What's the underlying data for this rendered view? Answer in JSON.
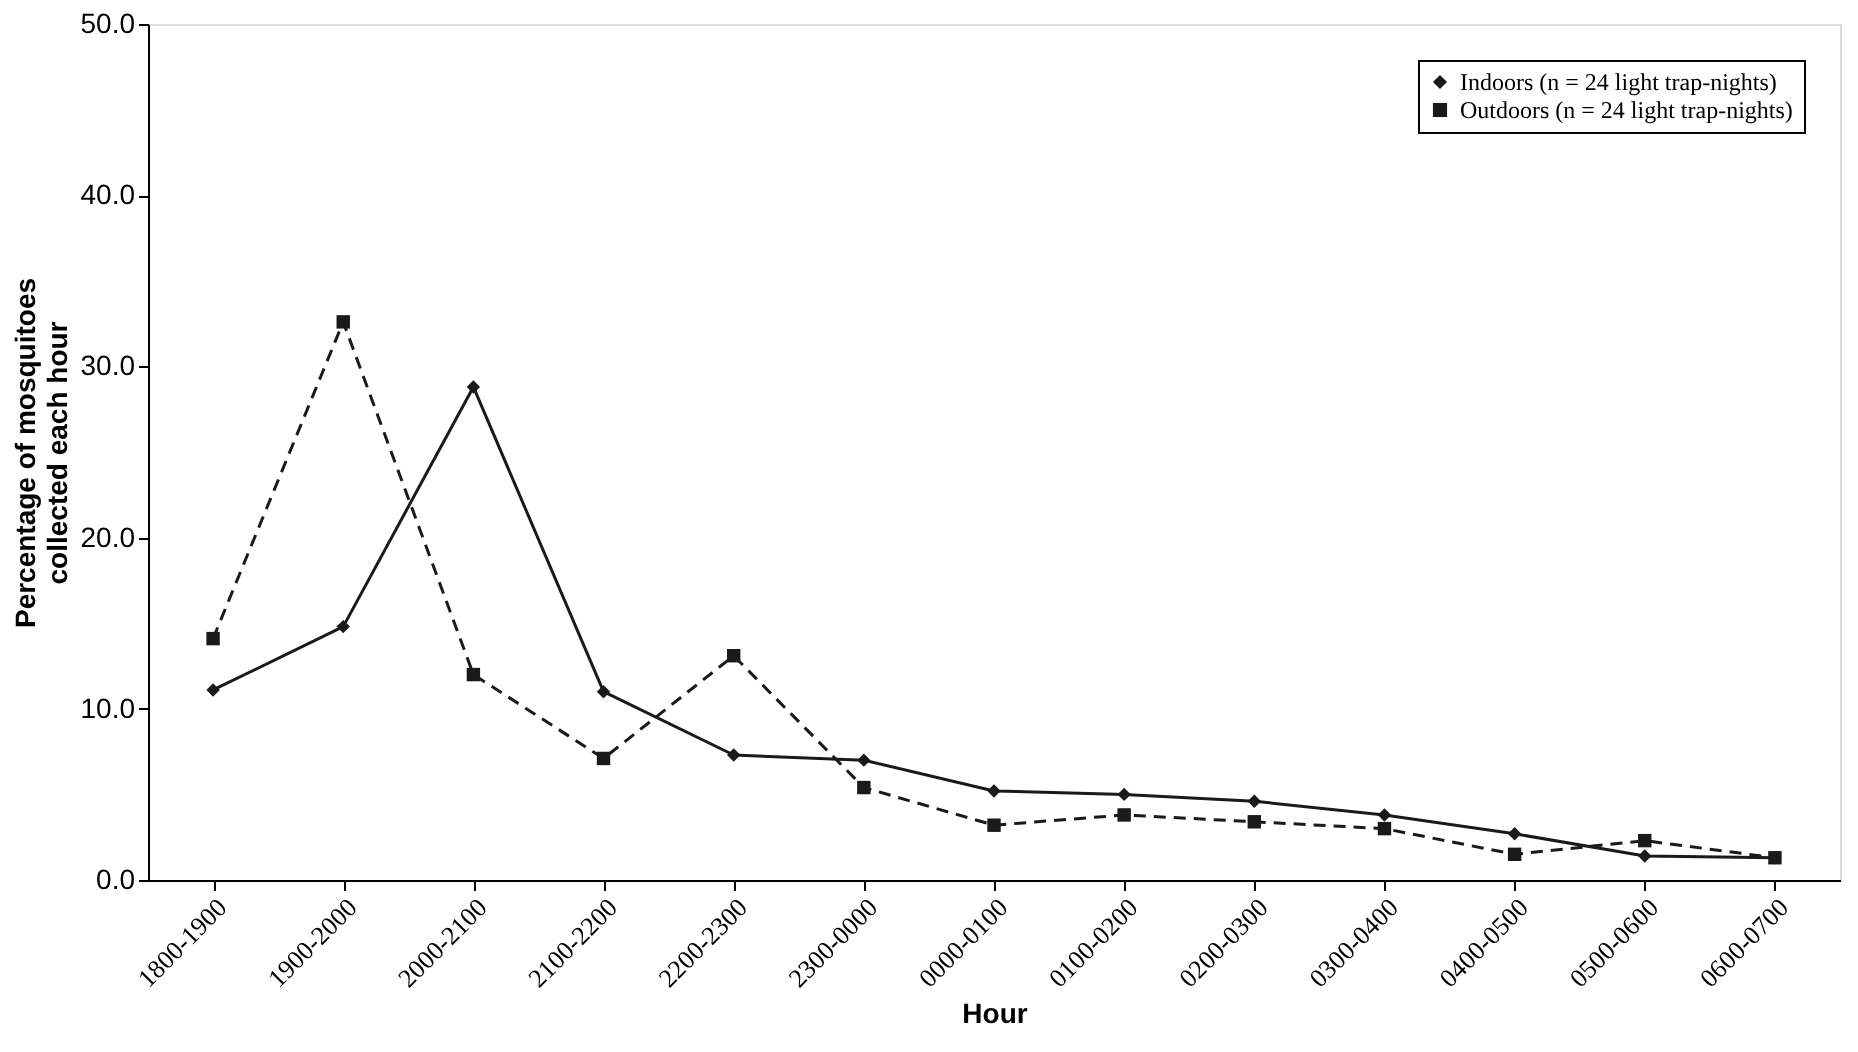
{
  "chart_data": {
    "type": "line",
    "xlabel": "Hour",
    "ylabel": "Percentage of mosquitoes collected each hour",
    "categories": [
      "1800-1900",
      "1900-2000",
      "2000-2100",
      "2100-2200",
      "2200-2300",
      "2300-0000",
      "0000-0100",
      "0100-0200",
      "0200-0300",
      "0300-0400",
      "0400-0500",
      "0500-0600",
      "0600-0700"
    ],
    "series": [
      {
        "name": "Indoors (n = 24 light trap-nights)",
        "color": "#1a1a1a",
        "marker": "diamond",
        "line_style": "solid",
        "values": [
          11.1,
          14.8,
          28.8,
          11.0,
          7.3,
          7.0,
          5.2,
          5.0,
          4.6,
          3.8,
          2.7,
          1.4,
          1.3
        ]
      },
      {
        "name": "Outdoors (n = 24 light trap-nights)",
        "color": "#1a1a1a",
        "marker": "square",
        "line_style": "dashed",
        "values": [
          14.1,
          32.6,
          12.0,
          7.1,
          13.1,
          5.4,
          3.2,
          3.8,
          3.4,
          3.0,
          1.5,
          2.3,
          1.3
        ]
      }
    ],
    "ylim": [
      0,
      50
    ],
    "yticks": [
      {
        "value": 0,
        "label": "0.0"
      },
      {
        "value": 10,
        "label": "10.0"
      },
      {
        "value": 20,
        "label": "20.0"
      },
      {
        "value": 30,
        "label": "30.0"
      },
      {
        "value": 40,
        "label": "40.0"
      },
      {
        "value": 50,
        "label": "50.0"
      }
    ],
    "grid": false,
    "legend": "top right"
  }
}
